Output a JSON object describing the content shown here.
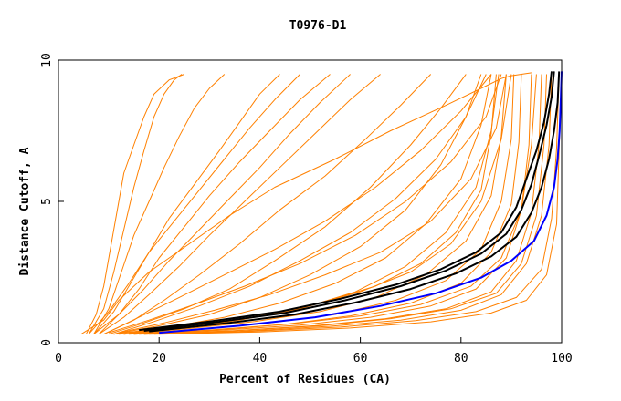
{
  "chart_data": {
    "type": "line",
    "title": "T0976-D1",
    "xlabel": "Percent of Residues (CA)",
    "ylabel": "Distance Cutoff, A",
    "xlim": [
      0,
      100
    ],
    "ylim": [
      0,
      10
    ],
    "x_ticks": [
      "0",
      "20",
      "40",
      "60",
      "80",
      "100"
    ],
    "y_ticks": [
      "0",
      "5",
      "10"
    ],
    "grid": false,
    "legend": "none",
    "colors": {
      "orange": "#ff8000",
      "black": "#000000",
      "blue": "#0000ff",
      "axis": "#000000"
    },
    "series": [
      {
        "color": "orange",
        "x": [
          4.5,
          9,
          12,
          18,
          26,
          34,
          43,
          55,
          66,
          77,
          84,
          88,
          90,
          92,
          94
        ],
        "y": [
          0.3,
          0.8,
          1.5,
          2.5,
          3.5,
          4.5,
          5.5,
          6.5,
          7.5,
          8.4,
          9,
          9.35,
          9.45,
          9.5,
          9.55
        ]
      },
      {
        "color": "orange",
        "x": [
          5.5,
          7.5,
          9,
          10,
          11,
          12,
          13,
          15,
          17,
          19,
          22,
          25
        ],
        "y": [
          0.3,
          1,
          2,
          3,
          4,
          5,
          6,
          7,
          8,
          8.8,
          9.3,
          9.5
        ]
      },
      {
        "color": "orange",
        "x": [
          6,
          9,
          11,
          13,
          15,
          17,
          19,
          21,
          23,
          24.5
        ],
        "y": [
          0.3,
          1.2,
          2.5,
          4,
          5.5,
          6.8,
          8,
          8.8,
          9.3,
          9.5
        ]
      },
      {
        "color": "orange",
        "x": [
          7,
          10,
          12.5,
          15,
          18,
          21,
          24,
          27,
          30,
          33
        ],
        "y": [
          0.3,
          1.2,
          2.5,
          3.8,
          5,
          6.2,
          7.3,
          8.3,
          9,
          9.5
        ]
      },
      {
        "color": "orange",
        "x": [
          7,
          11,
          14,
          18,
          22,
          27,
          32,
          36,
          40,
          44
        ],
        "y": [
          0.3,
          1.1,
          2,
          3.2,
          4.4,
          5.6,
          6.8,
          7.8,
          8.8,
          9.5
        ]
      },
      {
        "color": "orange",
        "x": [
          8,
          12,
          16,
          20,
          25,
          30,
          36,
          42,
          48,
          54
        ],
        "y": [
          0.3,
          1,
          1.9,
          3,
          4.1,
          5.2,
          6.4,
          7.5,
          8.6,
          9.5
        ]
      },
      {
        "color": "orange",
        "x": [
          8,
          13,
          18,
          24,
          30,
          37,
          44,
          51,
          58,
          64
        ],
        "y": [
          0.3,
          0.9,
          1.7,
          2.7,
          3.8,
          5,
          6.2,
          7.4,
          8.6,
          9.5
        ]
      },
      {
        "color": "orange",
        "x": [
          9,
          15,
          21,
          28,
          36,
          44,
          53,
          61,
          68,
          74
        ],
        "y": [
          0.3,
          0.8,
          1.5,
          2.4,
          3.5,
          4.7,
          5.9,
          7.2,
          8.4,
          9.5
        ]
      },
      {
        "color": "orange",
        "x": [
          10,
          17,
          25,
          34,
          43,
          53,
          62,
          70,
          76,
          81
        ],
        "y": [
          0.3,
          0.7,
          1.2,
          1.9,
          2.9,
          4.1,
          5.5,
          7,
          8.3,
          9.5
        ]
      },
      {
        "color": "orange",
        "x": [
          11,
          20,
          30,
          40,
          50,
          60,
          69,
          76,
          81,
          84
        ],
        "y": [
          0.3,
          0.6,
          1,
          1.6,
          2.4,
          3.4,
          4.7,
          6.3,
          8,
          9.5
        ]
      },
      {
        "color": "orange",
        "x": [
          11,
          22,
          33,
          44,
          55,
          65,
          73,
          80,
          84,
          86
        ],
        "y": [
          0.3,
          0.55,
          0.9,
          1.4,
          2.1,
          3,
          4.2,
          5.8,
          7.7,
          9.5
        ]
      },
      {
        "color": "orange",
        "x": [
          12,
          24,
          36,
          48,
          59,
          69,
          77,
          83,
          86,
          87.5
        ],
        "y": [
          0.3,
          0.5,
          0.8,
          1.2,
          1.8,
          2.7,
          3.9,
          5.5,
          7.5,
          9.5
        ]
      },
      {
        "color": "orange",
        "x": [
          13,
          26,
          39,
          52,
          63,
          73,
          81,
          86,
          88,
          89
        ],
        "y": [
          0.3,
          0.5,
          0.75,
          1.1,
          1.6,
          2.4,
          3.6,
          5.2,
          7.3,
          9.5
        ]
      },
      {
        "color": "orange",
        "x": [
          14,
          28,
          42,
          55,
          67,
          77,
          84,
          88,
          90,
          90.5
        ],
        "y": [
          0.3,
          0.48,
          0.7,
          1,
          1.5,
          2.2,
          3.3,
          5,
          7.2,
          9.5
        ]
      },
      {
        "color": "orange",
        "x": [
          15,
          30,
          45,
          58,
          70,
          80,
          86,
          90,
          91.5,
          92
        ],
        "y": [
          0.3,
          0.45,
          0.65,
          0.95,
          1.4,
          2.1,
          3.2,
          4.9,
          7.1,
          9.5
        ]
      },
      {
        "color": "orange",
        "x": [
          16,
          32,
          48,
          62,
          74,
          83,
          89,
          92,
          93.5,
          94
        ],
        "y": [
          0.3,
          0.44,
          0.62,
          0.9,
          1.3,
          1.9,
          3,
          4.7,
          7,
          9.5
        ]
      },
      {
        "color": "orange",
        "x": [
          17,
          34,
          51,
          65,
          77,
          86,
          91,
          94,
          95.5,
          96
        ],
        "y": [
          0.3,
          0.42,
          0.6,
          0.85,
          1.2,
          1.8,
          2.9,
          4.6,
          7,
          9.5
        ]
      },
      {
        "color": "orange",
        "x": [
          18,
          36,
          54,
          68,
          80,
          88,
          93,
          96,
          97.5,
          98
        ],
        "y": [
          0.3,
          0.4,
          0.58,
          0.8,
          1.15,
          1.7,
          2.8,
          4.5,
          7,
          9.5
        ]
      },
      {
        "color": "orange",
        "x": [
          19,
          38,
          56,
          71,
          83,
          91,
          96,
          98,
          99,
          99.5
        ],
        "y": [
          0.3,
          0.4,
          0.55,
          0.78,
          1.1,
          1.6,
          2.6,
          4.4,
          6.9,
          9.5
        ]
      },
      {
        "color": "orange",
        "x": [
          20,
          40,
          58,
          74,
          86,
          93,
          97,
          99,
          99.5,
          100
        ],
        "y": [
          0.3,
          0.38,
          0.52,
          0.74,
          1.05,
          1.5,
          2.4,
          4.2,
          6.8,
          9.5
        ]
      },
      {
        "color": "orange",
        "x": [
          14,
          27,
          40,
          52,
          63,
          72,
          79,
          84,
          86,
          87
        ],
        "y": [
          0.35,
          0.6,
          0.95,
          1.4,
          2,
          2.8,
          3.9,
          5.4,
          7.4,
          9.5
        ]
      },
      {
        "color": "orange",
        "x": [
          12,
          21,
          31,
          42,
          53,
          64,
          74,
          82,
          87,
          89
        ],
        "y": [
          0.35,
          0.7,
          1.15,
          1.7,
          2.4,
          3.2,
          4.3,
          5.8,
          7.6,
          9.5
        ]
      },
      {
        "color": "orange",
        "x": [
          10,
          18,
          27,
          37,
          48,
          59,
          69,
          78,
          85,
          88
        ],
        "y": [
          0.35,
          0.8,
          1.35,
          2,
          2.8,
          3.8,
          5,
          6.4,
          8,
          9.5
        ]
      },
      {
        "color": "orange",
        "x": [
          9,
          16,
          24,
          33,
          43,
          53,
          63,
          72,
          80,
          86
        ],
        "y": [
          0.3,
          0.9,
          1.6,
          2.4,
          3.3,
          4.3,
          5.5,
          6.8,
          8.2,
          9.5
        ]
      },
      {
        "color": "orange",
        "x": [
          13,
          25,
          37,
          49,
          60,
          70,
          78,
          84,
          88,
          90
        ],
        "y": [
          0.3,
          0.55,
          0.85,
          1.25,
          1.8,
          2.5,
          3.5,
          5,
          7.2,
          9.5
        ]
      },
      {
        "color": "orange",
        "x": [
          15,
          31,
          46,
          60,
          72,
          82,
          88,
          92,
          94,
          95
        ],
        "y": [
          0.3,
          0.45,
          0.66,
          0.95,
          1.35,
          2,
          3,
          4.7,
          7,
          9.5
        ]
      },
      {
        "color": "orange",
        "x": [
          17,
          35,
          52,
          66,
          78,
          87,
          92,
          95,
          96.5,
          97
        ],
        "y": [
          0.3,
          0.42,
          0.6,
          0.85,
          1.2,
          1.75,
          2.8,
          4.5,
          7,
          9.5
        ]
      },
      {
        "color": "orange",
        "x": [
          11,
          19,
          28,
          38,
          48,
          58,
          67,
          75,
          81,
          85
        ],
        "y": [
          0.3,
          0.75,
          1.3,
          2,
          2.9,
          3.9,
          5.1,
          6.5,
          8,
          9.5
        ]
      },
      {
        "color": "orange",
        "x": [
          7,
          12,
          17,
          22,
          28,
          34,
          40,
          46,
          52,
          58
        ],
        "y": [
          0.3,
          1,
          1.9,
          2.9,
          4,
          5.1,
          6.2,
          7.4,
          8.5,
          9.5
        ]
      },
      {
        "color": "orange",
        "x": [
          6,
          10,
          14,
          18,
          23,
          28,
          33,
          38,
          43,
          48
        ],
        "y": [
          0.3,
          1.1,
          2.1,
          3.2,
          4.3,
          5.4,
          6.5,
          7.6,
          8.6,
          9.5
        ]
      },
      {
        "color": "black",
        "x": [
          16,
          30,
          44,
          56,
          67,
          76,
          83,
          88,
          91,
          93,
          95,
          96.5,
          97.5,
          98
        ],
        "y": [
          0.45,
          0.75,
          1.1,
          1.55,
          2.05,
          2.6,
          3.2,
          3.9,
          4.8,
          5.8,
          6.8,
          7.8,
          8.8,
          9.6
        ]
      },
      {
        "color": "black",
        "x": [
          17,
          31,
          45,
          57,
          68,
          77,
          84,
          89,
          92,
          94,
          95.5,
          97,
          98,
          98.5
        ],
        "y": [
          0.42,
          0.72,
          1.05,
          1.5,
          2,
          2.55,
          3.15,
          3.85,
          4.7,
          5.6,
          6.6,
          7.7,
          8.7,
          9.6
        ]
      },
      {
        "color": "black",
        "x": [
          18,
          33,
          47,
          59,
          70,
          79,
          86,
          91,
          94,
          96,
          97.5,
          98.5,
          99.2,
          99.5
        ],
        "y": [
          0.4,
          0.68,
          1,
          1.42,
          1.9,
          2.45,
          3.05,
          3.75,
          4.6,
          5.5,
          6.5,
          7.5,
          8.5,
          9.6
        ]
      },
      {
        "color": "blue",
        "x": [
          20,
          36,
          51,
          64,
          75,
          84,
          90,
          94.5,
          97,
          98.5,
          99.2,
          99.6,
          99.8,
          100
        ],
        "y": [
          0.35,
          0.6,
          0.9,
          1.3,
          1.75,
          2.3,
          2.9,
          3.6,
          4.5,
          5.5,
          6.5,
          7.5,
          8.5,
          9.6
        ]
      }
    ]
  }
}
